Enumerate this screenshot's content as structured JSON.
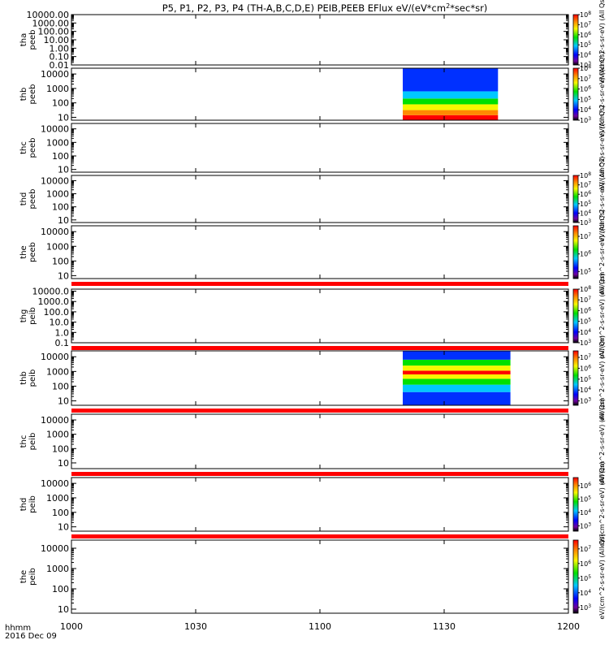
{
  "chart_data": {
    "type": "heatmap",
    "title": "P5, P1, P2, P3, P4 (TH-A,B,C,D,E) PEIB,PEEB EFlux eV/(eV*cm^2*sec*sr)",
    "title_parts": {
      "main": "P5, P1, P2, P3, P4 (TH-A,B,C,D,E) PEIB,PEEB EFlux eV/(eV*cm",
      "sup": "2",
      "tail": "*sec*sr)"
    },
    "x_axis": {
      "ticks": [
        "1000",
        "1030",
        "1100",
        "1130",
        "1200"
      ],
      "label_line1": "hhmm",
      "label_line2": "2016 Dec 09",
      "range_minutes": [
        0,
        120
      ]
    },
    "panels": [
      {
        "probe": "tha",
        "kind": "peeb",
        "yticks": [
          "10000.00",
          "1000.00",
          "100.00",
          "10.00",
          "1.00",
          "0.10",
          "0.01"
        ],
        "ylog": [
          -2,
          4
        ],
        "colorbar": true,
        "cbar_exps": [
          "3",
          "4",
          "5",
          "6",
          "7",
          "8"
        ],
        "cbar_log": [
          3,
          8
        ],
        "cbar_label": "eV/(cm^2-s-sr-eV) (All Qs)",
        "data": null
      },
      {
        "probe": "thb",
        "kind": "peeb",
        "yticks": [
          "10000",
          "1000",
          "100",
          "10"
        ],
        "ylog": [
          0.8,
          4.4
        ],
        "colorbar": true,
        "cbar_exps": [
          "3",
          "4",
          "5",
          "6",
          "7",
          "8"
        ],
        "cbar_log": [
          3,
          8
        ],
        "cbar_label": "eV/(cm^2-s-sr-eV) (All Qs)",
        "data": {
          "t_start": 80,
          "t_end": 103,
          "bands": [
            {
              "from": 0.8,
              "to": 1.15,
              "level": "red"
            },
            {
              "from": 1.15,
              "to": 1.5,
              "level": "orange"
            },
            {
              "from": 1.5,
              "to": 1.9,
              "level": "yellow"
            },
            {
              "from": 1.9,
              "to": 2.3,
              "level": "green"
            },
            {
              "from": 2.3,
              "to": 2.8,
              "level": "cyan"
            },
            {
              "from": 2.8,
              "to": 4.4,
              "level": "blue"
            }
          ]
        }
      },
      {
        "probe": "thc",
        "kind": "peeb",
        "yticks": [
          "10000",
          "1000",
          "100",
          "10"
        ],
        "ylog": [
          0.8,
          4.4
        ],
        "colorbar": false,
        "cbar_label": "eV/(cm^2-s-sr-eV) (All Qs)",
        "data": null
      },
      {
        "probe": "thd",
        "kind": "peeb",
        "yticks": [
          "10000",
          "1000",
          "100",
          "10"
        ],
        "ylog": [
          0.8,
          4.4
        ],
        "colorbar": true,
        "cbar_exps": [
          "3",
          "4",
          "5",
          "6",
          "7",
          "8"
        ],
        "cbar_log": [
          3,
          8
        ],
        "cbar_label": "eV/(cm^2-s-sr-eV) (All Qs)",
        "data": null
      },
      {
        "probe": "the",
        "kind": "peeb",
        "yticks": [
          "10000",
          "1000",
          "100",
          "10"
        ],
        "ylog": [
          0.8,
          4.4
        ],
        "colorbar": true,
        "cbar_exps": [
          "5",
          "6",
          "7"
        ],
        "cbar_log": [
          4.6,
          7.6
        ],
        "cbar_label": "eV/(cm^2-s-sr-eV) (All Qs)",
        "data": null,
        "stripe_below": true
      },
      {
        "probe": "thg",
        "kind": "peib",
        "yticks": [
          "10000.0",
          "1000.0",
          "100.0",
          "10.0",
          "1.0",
          "0.1"
        ],
        "ylog": [
          -1,
          4.2
        ],
        "colorbar": true,
        "cbar_exps": [
          "3",
          "4",
          "5",
          "6",
          "7",
          "8"
        ],
        "cbar_log": [
          3,
          8
        ],
        "cbar_label": "eV/(cm^2-s-sr-eV) (All Qs)",
        "data": null,
        "stripe_below": true
      },
      {
        "probe": "thb",
        "kind": "peib",
        "yticks": [
          "10000",
          "1000",
          "100",
          "10"
        ],
        "ylog": [
          0.7,
          4.4
        ],
        "colorbar": true,
        "cbar_exps": [
          "3",
          "4",
          "5",
          "6",
          "7"
        ],
        "cbar_log": [
          2.6,
          7.6
        ],
        "cbar_label": "eV/(cm^2-s-sr-eV) (All Qs)",
        "data": {
          "t_start": 80,
          "t_end": 106,
          "bands": [
            {
              "from": 0.7,
              "to": 1.6,
              "level": "blue"
            },
            {
              "from": 1.6,
              "to": 2.1,
              "level": "cyan"
            },
            {
              "from": 2.1,
              "to": 2.5,
              "level": "green"
            },
            {
              "from": 2.5,
              "to": 2.8,
              "level": "yellow"
            },
            {
              "from": 2.8,
              "to": 3.05,
              "level": "red"
            },
            {
              "from": 3.05,
              "to": 3.4,
              "level": "yellow"
            },
            {
              "from": 3.4,
              "to": 3.8,
              "level": "green"
            },
            {
              "from": 3.8,
              "to": 4.4,
              "level": "blue"
            }
          ]
        },
        "stripe_below": true
      },
      {
        "probe": "thc",
        "kind": "peib",
        "yticks": [
          "10000",
          "1000",
          "100",
          "10"
        ],
        "ylog": [
          0.6,
          4.4
        ],
        "colorbar": false,
        "cbar_label": "eV/(cm^2-s-sr-eV) (All Qs)",
        "data": null,
        "stripe_below": true
      },
      {
        "probe": "thd",
        "kind": "peib",
        "yticks": [
          "10000",
          "1000",
          "100",
          "10"
        ],
        "ylog": [
          0.7,
          4.4
        ],
        "colorbar": true,
        "cbar_exps": [
          "3",
          "4",
          "5",
          "6"
        ],
        "cbar_log": [
          2.6,
          6.6
        ],
        "cbar_label": "eV/(cm^2-s-sr-eV) (All Qs)",
        "data": null,
        "stripe_below": true
      },
      {
        "probe": "the",
        "kind": "peib",
        "yticks": [
          "10000",
          "1000",
          "100",
          "10"
        ],
        "ylog": [
          0.8,
          4.4
        ],
        "colorbar": true,
        "cbar_exps": [
          "3",
          "4",
          "5",
          "6",
          "7"
        ],
        "cbar_log": [
          2.6,
          7.6
        ],
        "cbar_label": "eV/(cm^2-s-sr-eV) (All Qs)",
        "data": null
      }
    ],
    "colors": {
      "red": "#ff0000",
      "orange": "#ff8a00",
      "yellow": "#f8f800",
      "green": "#00e000",
      "cyan": "#00c8ff",
      "blue": "#0030ff",
      "stripe": "#ff0000"
    }
  }
}
